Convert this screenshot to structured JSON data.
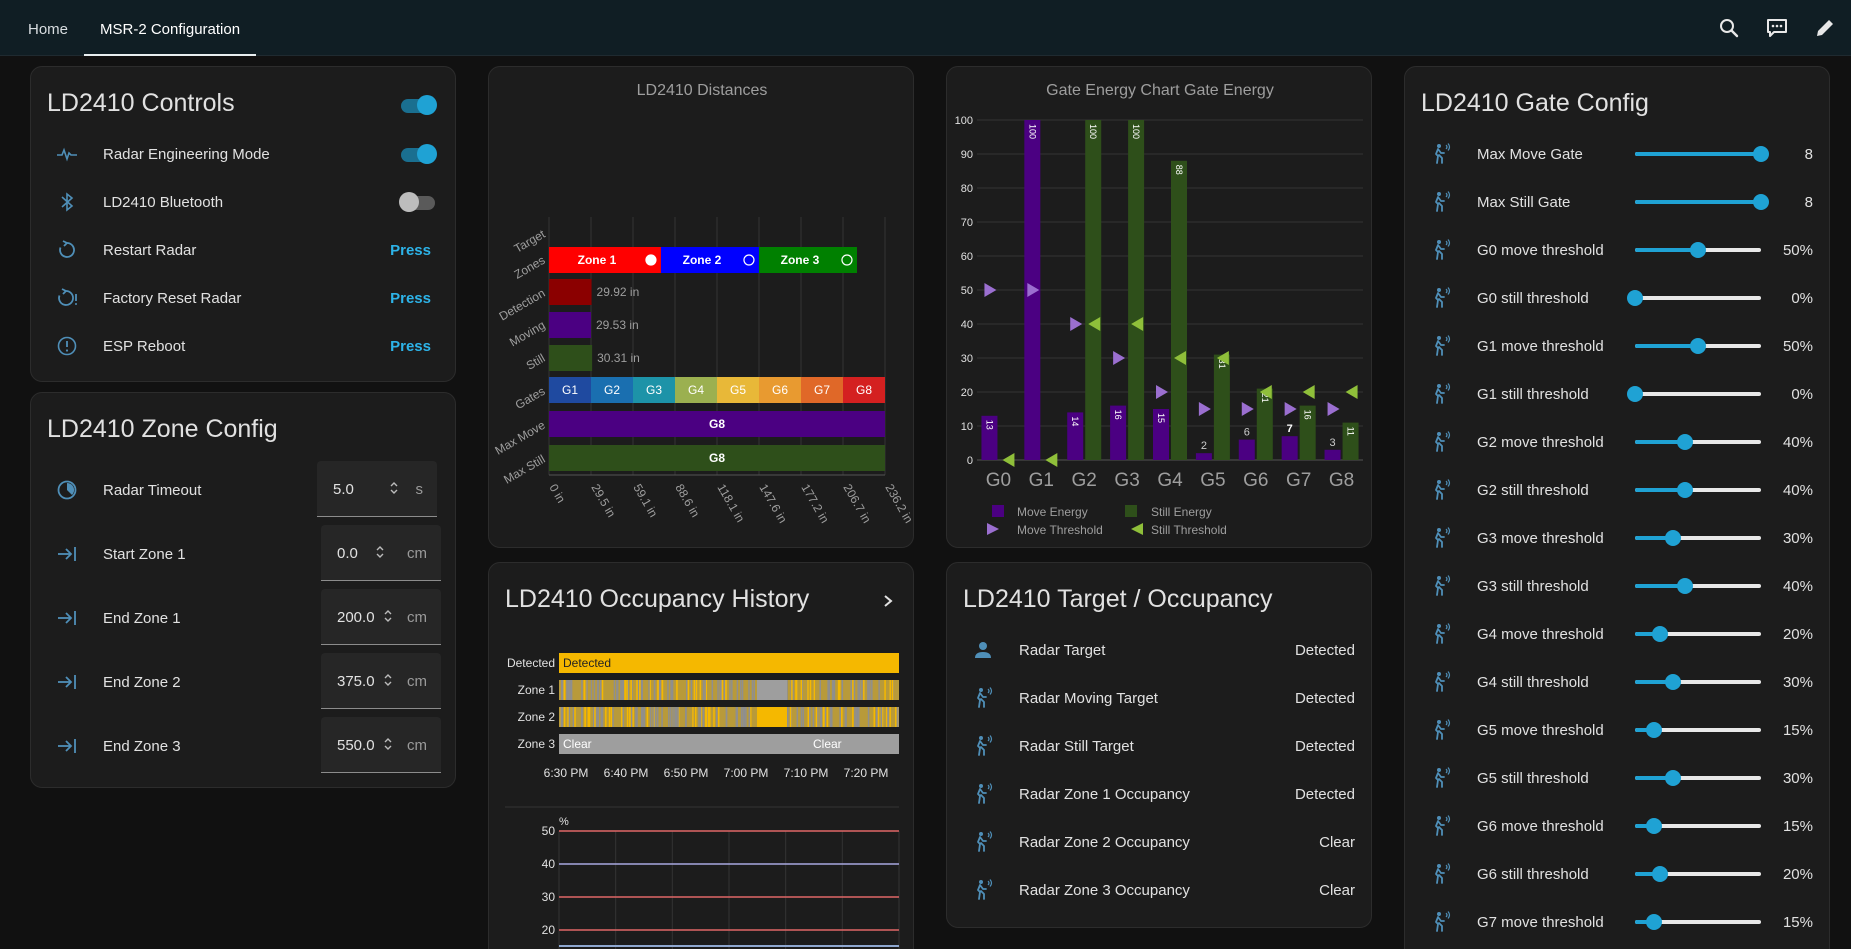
{
  "header": {
    "tabs": [
      {
        "label": "Home",
        "active": false
      },
      {
        "label": "MSR-2 Configuration",
        "active": true
      }
    ],
    "icons": [
      "search-icon",
      "assist-chat-icon",
      "edit-pencil-icon"
    ]
  },
  "controls": {
    "title": "LD2410 Controls",
    "main_toggle": true,
    "rows": [
      {
        "icon": "pulse-icon",
        "label": "Radar Engineering Mode",
        "kind": "toggle",
        "on": true
      },
      {
        "icon": "bluetooth-icon",
        "label": "LD2410 Bluetooth",
        "kind": "toggle",
        "on": false
      },
      {
        "icon": "restart-icon",
        "label": "Restart Radar",
        "kind": "button",
        "action": "Press"
      },
      {
        "icon": "factory-reset-icon",
        "label": "Factory Reset Radar",
        "kind": "button",
        "action": "Press"
      },
      {
        "icon": "info-icon",
        "label": "ESP Reboot",
        "kind": "button",
        "action": "Press"
      }
    ]
  },
  "zone_config": {
    "title": "LD2410 Zone Config",
    "rows": [
      {
        "icon": "timer-icon",
        "label": "Radar Timeout",
        "value": "5.0",
        "unit": "s"
      },
      {
        "icon": "arrow-collapse-right-icon",
        "label": "Start Zone 1",
        "value": "0.0",
        "unit": "cm"
      },
      {
        "icon": "arrow-collapse-right-icon",
        "label": "End Zone 1",
        "value": "200.0",
        "unit": "cm"
      },
      {
        "icon": "arrow-collapse-right-icon",
        "label": "End Zone 2",
        "value": "375.0",
        "unit": "cm"
      },
      {
        "icon": "arrow-collapse-right-icon",
        "label": "End Zone 3",
        "value": "550.0",
        "unit": "cm"
      }
    ]
  },
  "distances": {
    "title": "LD2410 Distances",
    "row_labels": [
      "Target",
      "Zones",
      "Detection",
      "Moving",
      "Still",
      "Gates",
      "Max Move",
      "Max Still"
    ],
    "zones": [
      {
        "label": "Zone 1",
        "color": "#ff0000",
        "start": 0,
        "end": 78.7
      },
      {
        "label": "Zone 2",
        "color": "#0000ff",
        "start": 78.7,
        "end": 147.6
      },
      {
        "label": "Zone 3",
        "color": "#008000",
        "start": 147.6,
        "end": 216.5
      }
    ],
    "detection": {
      "value": 29.92,
      "label": "29.92 in",
      "color": "#8b0000"
    },
    "moving": {
      "value": 29.53,
      "label": "29.53 in",
      "color": "#4b0082"
    },
    "still": {
      "value": 30.31,
      "label": "30.31 in",
      "color": "#2e4f1a"
    },
    "gates": [
      {
        "label": "G1",
        "color": "#1f4aa0"
      },
      {
        "label": "G2",
        "color": "#1a6fb0"
      },
      {
        "label": "G3",
        "color": "#1d93a8"
      },
      {
        "label": "G4",
        "color": "#9bb050"
      },
      {
        "label": "G5",
        "color": "#e8b838"
      },
      {
        "label": "G6",
        "color": "#e89a30"
      },
      {
        "label": "G7",
        "color": "#e06828"
      },
      {
        "label": "G8",
        "color": "#d42020"
      }
    ],
    "max_move": {
      "label": "G8",
      "color": "#4b0082"
    },
    "max_still": {
      "label": "G8",
      "color": "#2e4f1a"
    },
    "x_ticks": [
      "0 in",
      "29.5 in",
      "59.1 in",
      "88.6 in",
      "118.1 in",
      "147.6 in",
      "177.2 in",
      "206.7 in",
      "236.2 in"
    ],
    "x_max": 236.2
  },
  "gate_chart": {
    "title": "Gate Energy Chart Gate Energy",
    "chart_data": {
      "type": "bar",
      "title": "Gate Energy Chart Gate Energy",
      "categories": [
        "G0",
        "G1",
        "G2",
        "G3",
        "G4",
        "G5",
        "G6",
        "G7",
        "G8"
      ],
      "ylim": [
        0,
        100
      ],
      "y_ticks": [
        0,
        10,
        20,
        30,
        40,
        50,
        60,
        70,
        80,
        90,
        100
      ],
      "series": [
        {
          "name": "Move Energy",
          "kind": "bar",
          "color": "#4b0082",
          "values": [
            13,
            100,
            14,
            16,
            15,
            2,
            6,
            7,
            3
          ]
        },
        {
          "name": "Still Energy",
          "kind": "bar",
          "color": "#2e4f1a",
          "values": [
            0,
            0,
            100,
            100,
            88,
            31,
            21,
            16,
            11
          ]
        },
        {
          "name": "Move Threshold",
          "kind": "marker",
          "color": "#9b6fd0",
          "values": [
            50,
            50,
            40,
            30,
            20,
            15,
            15,
            15,
            15
          ]
        },
        {
          "name": "Still Threshold",
          "kind": "marker",
          "color": "#8fbf3a",
          "values": [
            0,
            0,
            40,
            40,
            30,
            30,
            20,
            20,
            20
          ]
        }
      ],
      "bar_labels": {
        "move": [
          "13",
          "100",
          "14",
          "16",
          "15",
          "2",
          "6",
          "7",
          "3"
        ],
        "still": [
          "",
          "",
          "100",
          "100",
          "88",
          "31",
          "21",
          "16",
          "11"
        ]
      },
      "legend_placement": "bottom"
    }
  },
  "occupancy_history": {
    "title": "LD2410 Occupancy History",
    "rows": [
      {
        "label": "Detected",
        "text": "Detected"
      },
      {
        "label": "Zone 1",
        "text": ""
      },
      {
        "label": "Zone 2",
        "text": ""
      },
      {
        "label": "Zone 3",
        "text": "Clear",
        "text2": "Clear"
      }
    ],
    "time_ticks": [
      "6:30 PM",
      "6:40 PM",
      "6:50 PM",
      "7:00 PM",
      "7:10 PM",
      "7:20 PM"
    ],
    "line_chart": {
      "unit": "%",
      "y_ticks": [
        "50",
        "40",
        "30",
        "20"
      ]
    }
  },
  "target_occupancy": {
    "title": "LD2410 Target / Occupancy",
    "rows": [
      {
        "icon": "account-icon",
        "label": "Radar Target",
        "state": "Detected"
      },
      {
        "icon": "motion-sensor-icon",
        "label": "Radar Moving Target",
        "state": "Detected"
      },
      {
        "icon": "motion-sensor-icon",
        "label": "Radar Still Target",
        "state": "Detected"
      },
      {
        "icon": "motion-sensor-icon",
        "label": "Radar Zone 1 Occupancy",
        "state": "Detected"
      },
      {
        "icon": "motion-sensor-icon",
        "label": "Radar Zone 2 Occupancy",
        "state": "Clear"
      },
      {
        "icon": "motion-sensor-icon",
        "label": "Radar Zone 3 Occupancy",
        "state": "Clear"
      }
    ]
  },
  "gate_config": {
    "title": "LD2410 Gate Config",
    "rows": [
      {
        "label": "Max Move Gate",
        "value": "8",
        "level": 1.0
      },
      {
        "label": "Max Still Gate",
        "value": "8",
        "level": 1.0
      },
      {
        "label": "G0 move threshold",
        "value": "50%",
        "level": 0.5
      },
      {
        "label": "G0 still threshold",
        "value": "0%",
        "level": 0.0
      },
      {
        "label": "G1 move threshold",
        "value": "50%",
        "level": 0.5
      },
      {
        "label": "G1 still threshold",
        "value": "0%",
        "level": 0.0
      },
      {
        "label": "G2 move threshold",
        "value": "40%",
        "level": 0.4
      },
      {
        "label": "G2 still threshold",
        "value": "40%",
        "level": 0.4
      },
      {
        "label": "G3 move threshold",
        "value": "30%",
        "level": 0.3
      },
      {
        "label": "G3 still threshold",
        "value": "40%",
        "level": 0.4
      },
      {
        "label": "G4 move threshold",
        "value": "20%",
        "level": 0.2
      },
      {
        "label": "G4 still threshold",
        "value": "30%",
        "level": 0.3
      },
      {
        "label": "G5 move threshold",
        "value": "15%",
        "level": 0.15
      },
      {
        "label": "G5 still threshold",
        "value": "30%",
        "level": 0.3
      },
      {
        "label": "G6 move threshold",
        "value": "15%",
        "level": 0.15
      },
      {
        "label": "G6 still threshold",
        "value": "20%",
        "level": 0.2
      },
      {
        "label": "G7 move threshold",
        "value": "15%",
        "level": 0.15
      }
    ]
  },
  "colors": {
    "accent": "#1fa2d4",
    "press": "#2db3e8",
    "icon": "#4f8fb8",
    "card": "#1c1c1c"
  }
}
